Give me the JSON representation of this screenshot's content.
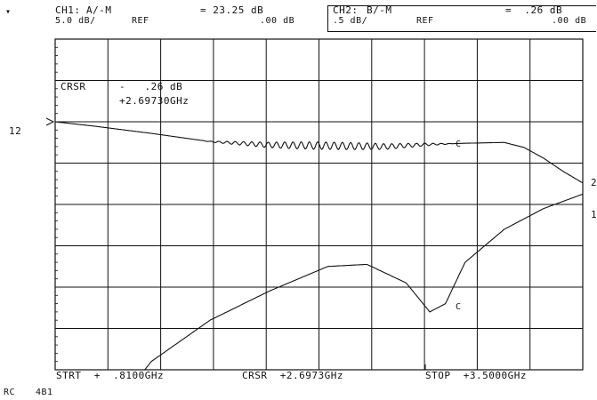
{
  "header": {
    "marker_glyph": "▾",
    "ch1": {
      "label": "CH1:",
      "meas": "A/-M",
      "ref_suffix": "REF",
      "scale": "5.0 dB/",
      "value": "= 23.25 dB",
      "ref_value": ".00 dB"
    },
    "ch2": {
      "label": "CH2:",
      "meas": "B/-M",
      "ref_suffix": "REF",
      "scale": ".5 dB/",
      "value": "=  .26 dB",
      "ref_value": ".00 dB"
    }
  },
  "cursor": {
    "label": "CRSR",
    "value": "-   .26 dB",
    "freq": "+2.69730GHz"
  },
  "ref_marks": {
    "ch1_ref_number": "12",
    "right_2": "2",
    "right_1": "1"
  },
  "marker_letter": "C",
  "footer": {
    "start": "STRT  +  .8100GHz",
    "cursor": "CRSR  +2.6973GHz",
    "stop": "STOP  +3.5000GHz"
  },
  "bottom_status": {
    "left": "RC",
    "code": "4B1"
  },
  "colors": {
    "ink": "#111111",
    "grid": "#222222",
    "background": "#ffffff"
  },
  "chart_data": {
    "type": "line",
    "title": "",
    "xlabel": "",
    "ylabel": "",
    "x_start_ghz": 0.81,
    "x_stop_ghz": 3.5,
    "grid": true,
    "series": [
      {
        "x": [
          0.81,
          1.0,
          1.3,
          1.6,
          1.9,
          2.2,
          2.5,
          2.7,
          2.9,
          3.1,
          3.2,
          3.3,
          3.4,
          3.5
        ],
        "y_div": [
          0.0,
          0.1,
          0.28,
          0.48,
          0.56,
          0.58,
          0.6,
          0.55,
          0.52,
          0.5,
          0.62,
          0.88,
          1.2,
          1.48
        ]
      },
      {
        "x": [
          0.81,
          1.0,
          1.1,
          1.3,
          1.6,
          1.9,
          2.2,
          2.4,
          2.6,
          2.72,
          2.8,
          2.9,
          3.1,
          3.3,
          3.5
        ],
        "y_div": [
          -7.2,
          -7.5,
          -7.0,
          -5.8,
          -4.8,
          -4.1,
          -3.5,
          -3.45,
          -3.9,
          -4.6,
          -4.4,
          -3.4,
          -2.6,
          -2.1,
          -1.75
        ]
      }
    ]
  }
}
